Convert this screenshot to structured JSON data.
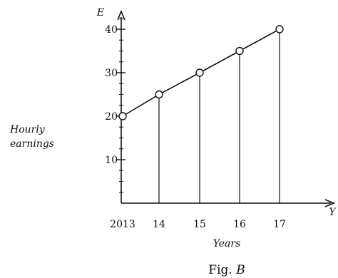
{
  "chart_data": {
    "type": "line",
    "x": [
      "2013",
      "14",
      "15",
      "16",
      "17"
    ],
    "values": [
      20,
      25,
      30,
      35,
      40
    ],
    "xlabel": "Years",
    "ylabel_lines": [
      "Hourly",
      "earnings"
    ],
    "y_axis_letter": "E",
    "x_axis_letter": "Y",
    "yticks": [
      "10",
      "20",
      "30",
      "40"
    ],
    "ylim": [
      0,
      45
    ],
    "caption": {
      "prefix": "Fig. ",
      "letter": "B"
    },
    "grid": false,
    "markers": "open-circle",
    "drop_lines": true
  }
}
